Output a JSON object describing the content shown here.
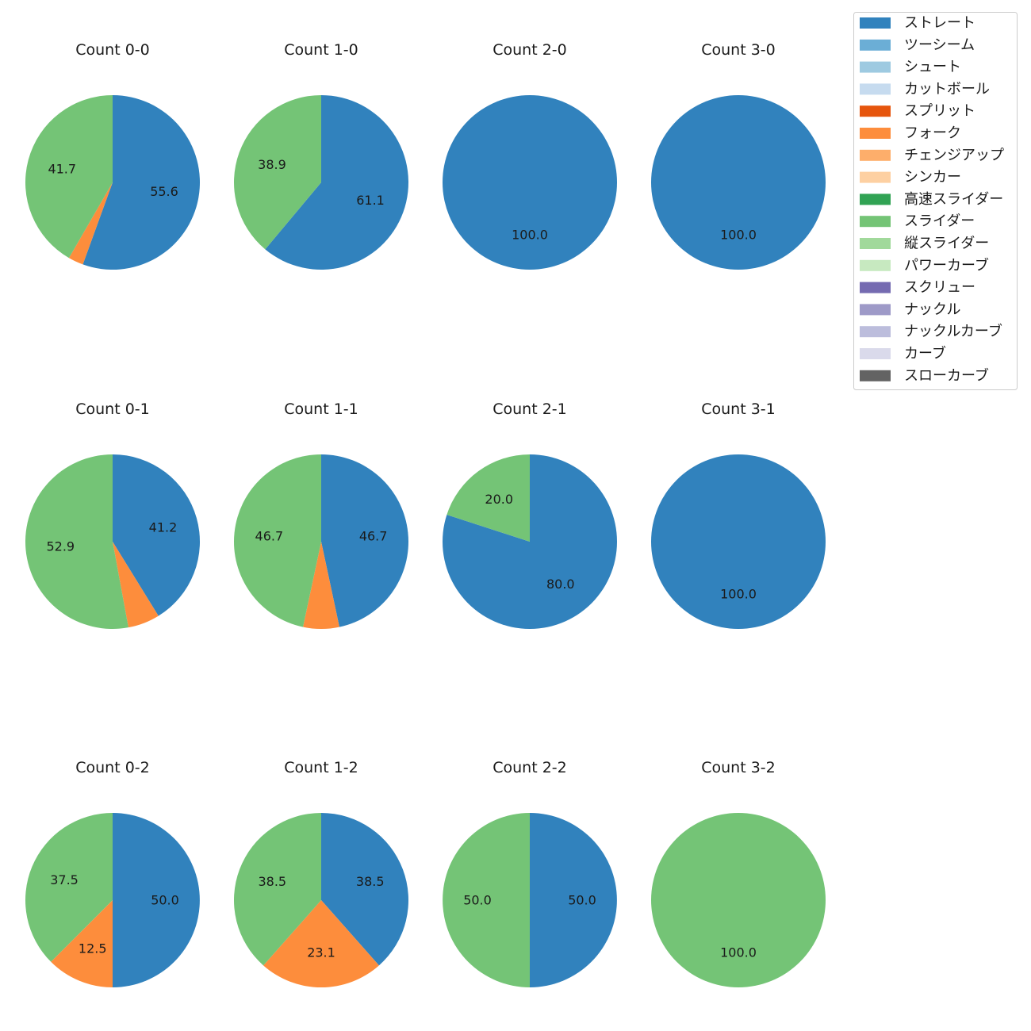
{
  "chart_data": {
    "type": "pie",
    "legend": {
      "placement": "top-right",
      "entries": [
        {
          "name": "ストレート",
          "color": "#3182bd"
        },
        {
          "name": "ツーシーム",
          "color": "#6baed6"
        },
        {
          "name": "シュート",
          "color": "#9ecae1"
        },
        {
          "name": "カットボール",
          "color": "#c6dbef"
        },
        {
          "name": "スプリット",
          "color": "#e6550d"
        },
        {
          "name": "フォーク",
          "color": "#fd8d3c"
        },
        {
          "name": "チェンジアップ",
          "color": "#fdae6b"
        },
        {
          "name": "シンカー",
          "color": "#fdd0a2"
        },
        {
          "name": "高速スライダー",
          "color": "#31a354"
        },
        {
          "name": "スライダー",
          "color": "#74c476"
        },
        {
          "name": "縦スライダー",
          "color": "#a1d99b"
        },
        {
          "name": "パワーカーブ",
          "color": "#c7e9c0"
        },
        {
          "name": "スクリュー",
          "color": "#756bb1"
        },
        {
          "name": "ナックル",
          "color": "#9e9ac8"
        },
        {
          "name": "ナックルカーブ",
          "color": "#bcbddc"
        },
        {
          "name": "カーブ",
          "color": "#dadaeb"
        },
        {
          "name": "スローカーブ",
          "color": "#636363"
        }
      ]
    },
    "charts": [
      {
        "title": "Count 0-0",
        "slices": [
          {
            "pitch": "ストレート",
            "value": 55.6,
            "label": "55.6"
          },
          {
            "pitch": "フォーク",
            "value": 2.8,
            "label": ""
          },
          {
            "pitch": "スライダー",
            "value": 41.7,
            "label": "41.7"
          }
        ]
      },
      {
        "title": "Count 1-0",
        "slices": [
          {
            "pitch": "ストレート",
            "value": 61.1,
            "label": "61.1"
          },
          {
            "pitch": "スライダー",
            "value": 38.9,
            "label": "38.9"
          }
        ]
      },
      {
        "title": "Count 2-0",
        "slices": [
          {
            "pitch": "ストレート",
            "value": 100.0,
            "label": "100.0"
          }
        ]
      },
      {
        "title": "Count 3-0",
        "slices": [
          {
            "pitch": "ストレート",
            "value": 100.0,
            "label": "100.0"
          }
        ]
      },
      {
        "title": "Count 0-1",
        "slices": [
          {
            "pitch": "ストレート",
            "value": 41.2,
            "label": "41.2"
          },
          {
            "pitch": "フォーク",
            "value": 5.9,
            "label": ""
          },
          {
            "pitch": "スライダー",
            "value": 52.9,
            "label": "52.9"
          }
        ]
      },
      {
        "title": "Count 1-1",
        "slices": [
          {
            "pitch": "ストレート",
            "value": 46.7,
            "label": "46.7"
          },
          {
            "pitch": "フォーク",
            "value": 6.7,
            "label": ""
          },
          {
            "pitch": "スライダー",
            "value": 46.7,
            "label": "46.7"
          }
        ]
      },
      {
        "title": "Count 2-1",
        "slices": [
          {
            "pitch": "ストレート",
            "value": 80.0,
            "label": "80.0"
          },
          {
            "pitch": "スライダー",
            "value": 20.0,
            "label": "20.0"
          }
        ]
      },
      {
        "title": "Count 3-1",
        "slices": [
          {
            "pitch": "ストレート",
            "value": 100.0,
            "label": "100.0"
          }
        ]
      },
      {
        "title": "Count 0-2",
        "slices": [
          {
            "pitch": "ストレート",
            "value": 50.0,
            "label": "50.0"
          },
          {
            "pitch": "フォーク",
            "value": 12.5,
            "label": "12.5"
          },
          {
            "pitch": "スライダー",
            "value": 37.5,
            "label": "37.5"
          }
        ]
      },
      {
        "title": "Count 1-2",
        "slices": [
          {
            "pitch": "ストレート",
            "value": 38.5,
            "label": "38.5"
          },
          {
            "pitch": "フォーク",
            "value": 23.1,
            "label": "23.1"
          },
          {
            "pitch": "スライダー",
            "value": 38.5,
            "label": "38.5"
          }
        ]
      },
      {
        "title": "Count 2-2",
        "slices": [
          {
            "pitch": "ストレート",
            "value": 50.0,
            "label": "50.0"
          },
          {
            "pitch": "スライダー",
            "value": 50.0,
            "label": "50.0"
          }
        ]
      },
      {
        "title": "Count 3-2",
        "slices": [
          {
            "pitch": "スライダー",
            "value": 100.0,
            "label": "100.0"
          }
        ]
      }
    ]
  }
}
